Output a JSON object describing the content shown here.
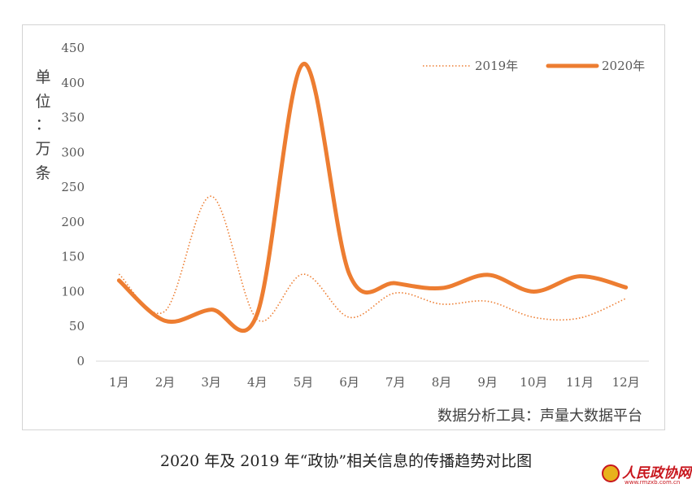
{
  "chart_data": {
    "type": "line",
    "categories": [
      "1月",
      "2月",
      "3月",
      "4月",
      "5月",
      "6月",
      "7月",
      "8月",
      "9月",
      "10月",
      "11月",
      "12月"
    ],
    "series": [
      {
        "name": "2019年",
        "values": [
          125,
          72,
          237,
          60,
          125,
          63,
          98,
          82,
          86,
          63,
          62,
          90
        ],
        "style": "dotted",
        "color": "#ed7d31"
      },
      {
        "name": "2020年",
        "values": [
          116,
          58,
          74,
          68,
          427,
          125,
          112,
          105,
          124,
          100,
          122,
          106
        ],
        "style": "solid-thick",
        "color": "#ed7d31"
      }
    ],
    "ylabel": "单位：万条",
    "ylabel_chars": [
      "单",
      "位",
      "：",
      "万",
      "条"
    ],
    "ylim": [
      0,
      450
    ],
    "yticks": [
      0,
      50,
      100,
      150,
      200,
      250,
      300,
      350,
      400,
      450
    ],
    "grid": false,
    "legend_position": "top-right",
    "source_note": "数据分析工具：声量大数据平台"
  },
  "caption": "2020 年及 2019 年“政协”相关信息的传播趋势对比图",
  "logo": {
    "text": "人民政协网",
    "url": "www.rmzxb.com.cn"
  }
}
